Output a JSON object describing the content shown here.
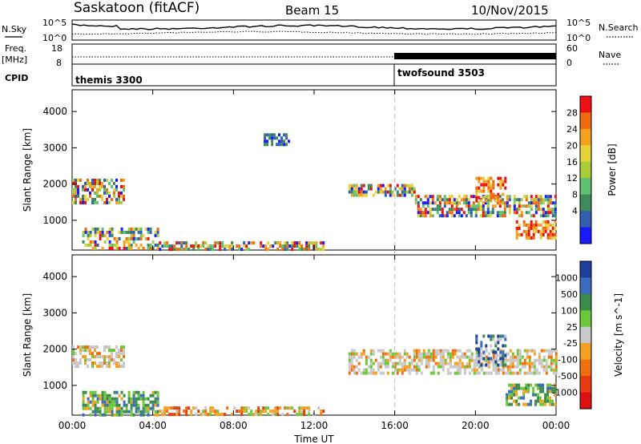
{
  "header": {
    "station": "Saskatoon (fitACF)",
    "beam": "Beam 15",
    "date": "10/Nov/2015"
  },
  "status_panels": {
    "nsky_label": "N.Sky",
    "nsky_ticks": [
      "10^5",
      "10^0"
    ],
    "nsearch_label": "N.Search",
    "nsearch_ticks": [
      "10^5",
      "10^0"
    ],
    "freq_label_1": "Freq.",
    "freq_label_2": "[MHz]",
    "freq_ticks": [
      "18",
      "8"
    ],
    "nave_label": "Nave",
    "nave_ticks": [
      "60",
      "0"
    ],
    "cpid_label": "CPID",
    "cpid_modes": [
      {
        "name": "themis 3300",
        "start_hour": 0
      },
      {
        "name": "twofsound 3503",
        "start_hour": 16
      }
    ],
    "mode_change_hour": 16
  },
  "chart_data": [
    {
      "type": "heatmap",
      "title": "",
      "xlabel": "",
      "ylabel": "Slant Range [km]",
      "x_range_hours": [
        0,
        24
      ],
      "ylim": [
        180,
        4600
      ],
      "y_ticks": [
        1000,
        2000,
        3000,
        4000
      ],
      "colorbar": {
        "label": "Power [dB]",
        "ticks": [
          "28",
          "24",
          "20",
          "16",
          "12",
          "8",
          "4"
        ],
        "colors": [
          "#ee1010",
          "#f06a10",
          "#f5a020",
          "#e6d23a",
          "#a8cc3a",
          "#5ec070",
          "#3e8a5a",
          "#2f5fae",
          "#1a1aff"
        ]
      },
      "echo_regions": [
        {
          "t0": 0.0,
          "t1": 2.6,
          "r0": 1450,
          "r1": 2150,
          "level": "mixed"
        },
        {
          "t0": 0.5,
          "t1": 4.3,
          "r0": 250,
          "r1": 800,
          "level": "mixed"
        },
        {
          "t0": 4.3,
          "t1": 12.5,
          "r0": 200,
          "r1": 420,
          "level": "mixed"
        },
        {
          "t0": 9.5,
          "t1": 10.8,
          "r0": 3100,
          "r1": 3400,
          "level": "low"
        },
        {
          "t0": 13.7,
          "t1": 17.0,
          "r0": 1650,
          "r1": 2000,
          "level": "mixed"
        },
        {
          "t0": 17.0,
          "t1": 24.0,
          "r0": 1100,
          "r1": 1700,
          "level": "mixed"
        },
        {
          "t0": 20.0,
          "t1": 21.5,
          "r0": 1500,
          "r1": 2200,
          "level": "high"
        },
        {
          "t0": 22.0,
          "t1": 24.0,
          "r0": 500,
          "r1": 1000,
          "level": "high"
        }
      ]
    },
    {
      "type": "heatmap",
      "title": "",
      "xlabel": "Time UT",
      "ylabel": "Slant Range [km]",
      "x_range_hours": [
        0,
        24
      ],
      "ylim": [
        180,
        4600
      ],
      "y_ticks": [
        1000,
        2000,
        3000,
        4000
      ],
      "x_ticks": [
        "00:00",
        "04:00",
        "08:00",
        "12:00",
        "16:00",
        "20:00",
        "00:00"
      ],
      "colorbar": {
        "label": "Velocity [m s^-1]",
        "ticks": [
          "1000",
          "500",
          "100",
          "25",
          "-25",
          "-100",
          "-500",
          "-1000"
        ],
        "colors": [
          "#1f3f9c",
          "#3c6cc0",
          "#3a8a4c",
          "#6cc83a",
          "#c8c8c8",
          "#f5a020",
          "#f07010",
          "#e83a10",
          "#dd1010"
        ]
      },
      "echo_regions": [
        {
          "t0": 0.0,
          "t1": 2.6,
          "r0": 1500,
          "r1": 2100,
          "level": "gray"
        },
        {
          "t0": 0.5,
          "t1": 4.3,
          "r0": 200,
          "r1": 850,
          "level": "green"
        },
        {
          "t0": 4.3,
          "t1": 12.5,
          "r0": 200,
          "r1": 420,
          "level": "orange"
        },
        {
          "t0": 13.7,
          "t1": 24.0,
          "r0": 1300,
          "r1": 2000,
          "level": "gray"
        },
        {
          "t0": 20.0,
          "t1": 21.5,
          "r0": 1600,
          "r1": 2400,
          "level": "blue"
        },
        {
          "t0": 21.5,
          "t1": 24.0,
          "r0": 500,
          "r1": 1050,
          "level": "green"
        }
      ]
    }
  ]
}
